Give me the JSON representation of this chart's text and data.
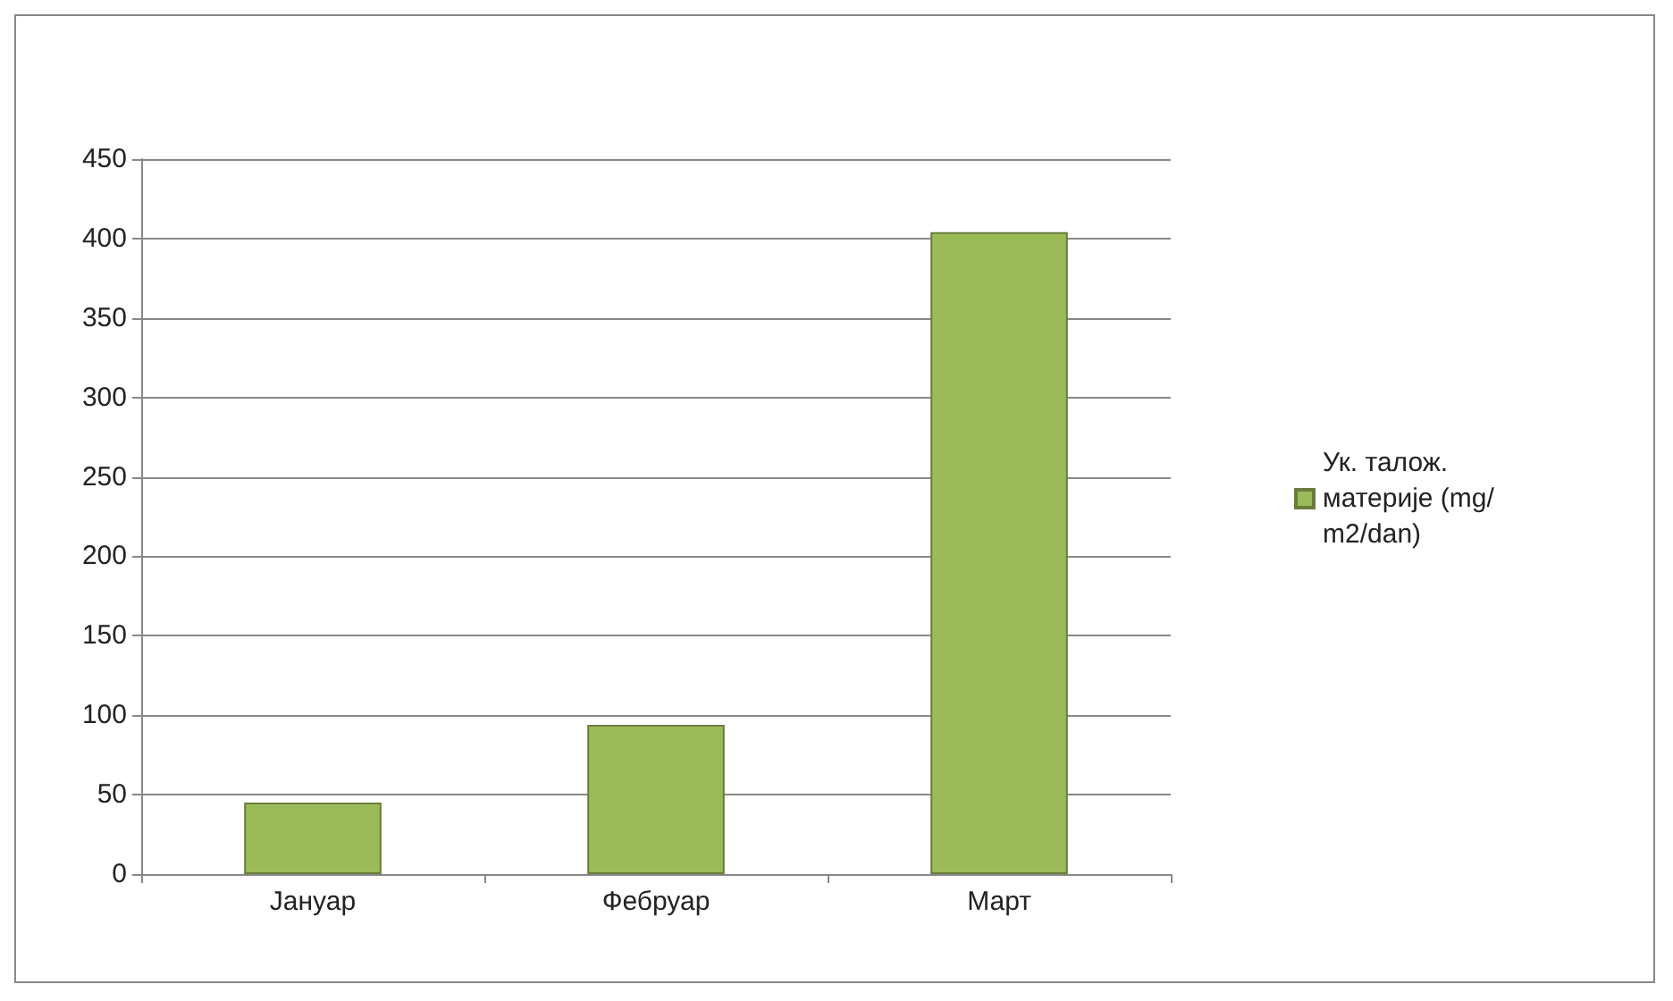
{
  "chart_data": {
    "type": "bar",
    "categories": [
      "Јануар",
      "Фебруар",
      "Март"
    ],
    "series": [
      {
        "name": "Ук. талож. материје (mg/m2/dan)",
        "color": "#9bbb59",
        "values": [
          45,
          94,
          404
        ]
      }
    ],
    "ylim": [
      0,
      450
    ],
    "yticks": [
      0,
      50,
      100,
      150,
      200,
      250,
      300,
      350,
      400,
      450
    ],
    "grid": "y",
    "legend": "right"
  }
}
